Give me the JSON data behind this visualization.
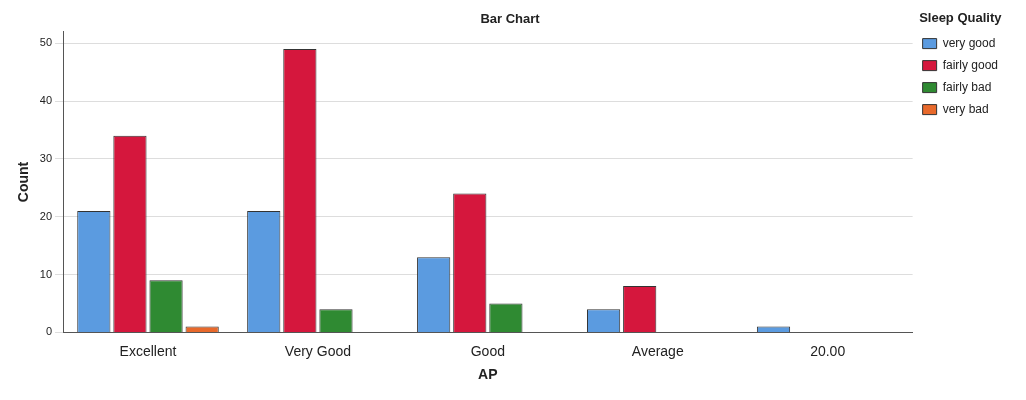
{
  "chart_data": {
    "type": "bar",
    "title": "Bar Chart",
    "xlabel": "AP",
    "ylabel": "Count",
    "legend_title": "Sleep Quality",
    "categories": [
      "Excellent",
      "Very Good",
      "Good",
      "Average",
      "20.00"
    ],
    "series": [
      {
        "name": "very good",
        "color": "#5b9be0",
        "values": [
          21,
          21,
          13,
          4,
          1
        ]
      },
      {
        "name": "fairly good",
        "color": "#d5173d",
        "values": [
          34,
          49,
          24,
          8,
          null
        ]
      },
      {
        "name": "fairly bad",
        "color": "#2f8a32",
        "values": [
          9,
          4,
          5,
          null,
          null
        ]
      },
      {
        "name": "very bad",
        "color": "#e8692b",
        "values": [
          1,
          null,
          null,
          null,
          null
        ]
      }
    ],
    "ylim": [
      0,
      52
    ],
    "yticks": [
      0,
      10,
      20,
      30,
      40,
      50
    ],
    "grid": "y",
    "legend": "right"
  }
}
